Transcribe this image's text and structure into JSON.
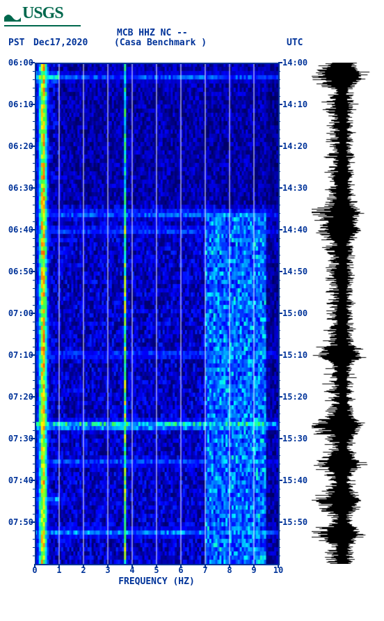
{
  "logo_text": "USGS",
  "header": {
    "station_code": "MCB HHZ NC --",
    "tz_left": "PST",
    "date": "Dec17,2020",
    "station_name": "(Casa Benchmark )",
    "tz_right": "UTC"
  },
  "spectrogram": {
    "type": "spectrogram-heatmap",
    "x": {
      "label": "FREQUENCY (HZ)",
      "min": 0,
      "max": 10,
      "ticks": [
        0,
        1,
        2,
        3,
        4,
        5,
        6,
        7,
        8,
        9,
        10
      ]
    },
    "y_left": {
      "label": "PST",
      "ticks": [
        "06:00",
        "06:10",
        "06:20",
        "06:30",
        "06:40",
        "06:50",
        "07:00",
        "07:10",
        "07:20",
        "07:30",
        "07:40",
        "07:50"
      ]
    },
    "y_right": {
      "label": "UTC",
      "ticks": [
        "14:00",
        "14:10",
        "14:20",
        "14:30",
        "14:40",
        "14:50",
        "15:00",
        "15:10",
        "15:20",
        "15:30",
        "15:40",
        "15:50"
      ]
    },
    "minutes_per_span": 120,
    "n_rows": 120,
    "n_cols": 120,
    "colormap": [
      [
        0.0,
        "#000033"
      ],
      [
        0.15,
        "#000088"
      ],
      [
        0.3,
        "#0000ff"
      ],
      [
        0.45,
        "#0080ff"
      ],
      [
        0.55,
        "#00ffff"
      ],
      [
        0.65,
        "#40ff40"
      ],
      [
        0.75,
        "#ffff00"
      ],
      [
        0.85,
        "#ff8000"
      ],
      [
        1.0,
        "#ff0000"
      ]
    ],
    "grid_color": "#ffffff",
    "grid_x_every": 1,
    "persistent_lines": [
      {
        "freq": 0.3,
        "intensity_peak": 1.0,
        "width": 0.35
      },
      {
        "freq": 3.7,
        "intensity_peak": 0.8,
        "width": 0.08
      }
    ],
    "horizontal_events": [
      {
        "minute": 3,
        "strength": 0.8,
        "spread": 0.6
      },
      {
        "minute": 36,
        "strength": 0.55,
        "spread": 1.0
      },
      {
        "minute": 40,
        "strength": 0.5,
        "spread": 1.0
      },
      {
        "minute": 70,
        "strength": 0.5,
        "spread": 1.0
      },
      {
        "minute": 87,
        "strength": 0.75,
        "spread": 1.0
      },
      {
        "minute": 96,
        "strength": 0.5,
        "spread": 1.0
      },
      {
        "minute": 105,
        "strength": 0.6,
        "spread": 0.4
      },
      {
        "minute": 113,
        "strength": 0.55,
        "spread": 1.0
      }
    ],
    "high_freq_region": {
      "freq_start": 7.0,
      "freq_end": 9.5,
      "minute_start": 36,
      "minute_end": 120,
      "boost": 0.25
    },
    "top_quiet_region": {
      "minute_end": 34,
      "freq_start": 1.0,
      "damp": 0.15
    },
    "base_noise_low": 0.1,
    "base_noise_high": 0.35
  },
  "seismogram": {
    "type": "waveform",
    "color": "#000000",
    "background": "#ffffff",
    "samples": 720,
    "base_amplitude": 0.35,
    "events_ref": "use spectrogram.horizontal_events for amplitude bursts"
  }
}
